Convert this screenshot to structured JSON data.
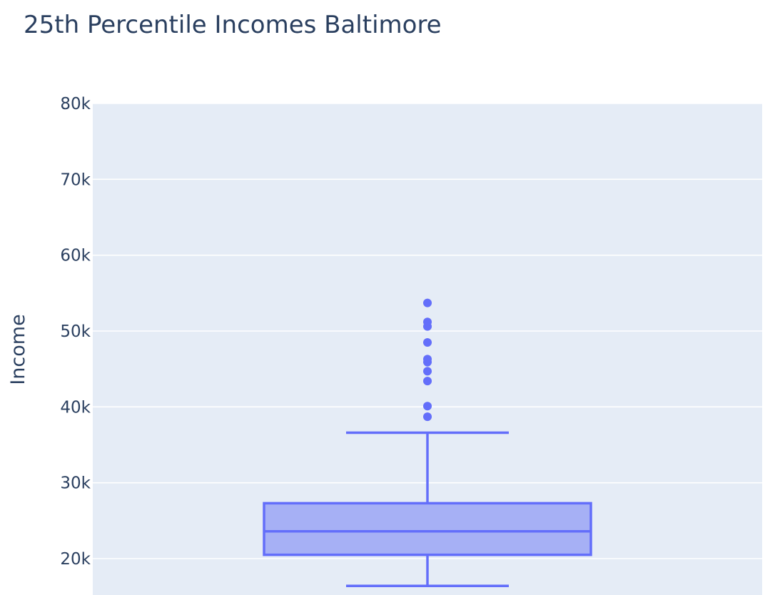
{
  "chart_data": {
    "type": "box",
    "title": "25th Percentile Incomes Baltimore",
    "xlabel": "",
    "ylabel": "Income",
    "ylim": [
      15000,
      80000
    ],
    "y_ticks": [
      {
        "value": 20000,
        "label": "20k"
      },
      {
        "value": 30000,
        "label": "30k"
      },
      {
        "value": 40000,
        "label": "40k"
      },
      {
        "value": 50000,
        "label": "50k"
      },
      {
        "value": 60000,
        "label": "60k"
      },
      {
        "value": 70000,
        "label": "70k"
      },
      {
        "value": 80000,
        "label": "80k"
      }
    ],
    "grid": true,
    "series": [
      {
        "lower_whisker": 16400,
        "q1": 20500,
        "median": 23600,
        "q3": 27300,
        "upper_whisker": 36600,
        "outliers": [
          38700,
          40100,
          43400,
          44700,
          45900,
          46300,
          48500,
          50600,
          51200,
          53700
        ]
      }
    ],
    "colors": {
      "line": "#636efa",
      "fill": "#a6b0f5",
      "plot_bg": "#e5ecf6",
      "grid": "#ffffff",
      "text": "#2a3f5f"
    }
  }
}
